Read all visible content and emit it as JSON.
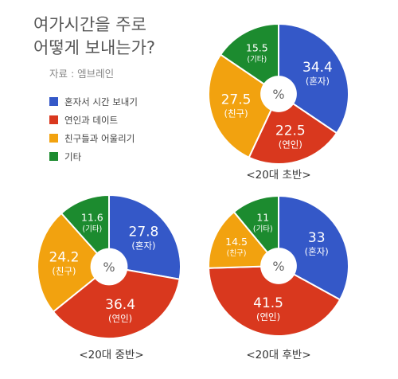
{
  "title_lines": [
    "여가시간을 주로",
    "어떻게 보내는가?"
  ],
  "source": "자료 : 엠브레인",
  "colors": [
    "#3458C8",
    "#D9381E",
    "#F2A20F",
    "#1C8B2F"
  ],
  "chart_data": [
    {
      "type": "pie",
      "subtitle": "<20대 초반>",
      "center_label": "%",
      "categories": [
        "혼자서 시간 보내기",
        "연인과 데이트",
        "친구들과 어울리기",
        "기타"
      ],
      "values": [
        34.4,
        22.5,
        27.5,
        15.5
      ],
      "slice_labels": [
        "혼자",
        "연인",
        "친구",
        "기타"
      ]
    },
    {
      "type": "pie",
      "subtitle": "<20대 중반>",
      "center_label": "%",
      "categories": [
        "혼자서 시간 보내기",
        "연인과 데이트",
        "친구들과 어울리기",
        "기타"
      ],
      "values": [
        27.8,
        36.4,
        24.2,
        11.6
      ],
      "slice_labels": [
        "혼자",
        "연인",
        "친구",
        "기타"
      ]
    },
    {
      "type": "pie",
      "subtitle": "<20대 후반>",
      "center_label": "%",
      "categories": [
        "혼자서 시간 보내기",
        "연인과 데이트",
        "친구들과 어울리기",
        "기타"
      ],
      "values": [
        33,
        41.5,
        14.5,
        11
      ],
      "slice_labels": [
        "혼자",
        "연인",
        "친구",
        "기타"
      ]
    }
  ],
  "legend": [
    "혼자서 시간 보내기",
    "연인과 데이트",
    "친구들과 어울리기",
    "기타"
  ]
}
